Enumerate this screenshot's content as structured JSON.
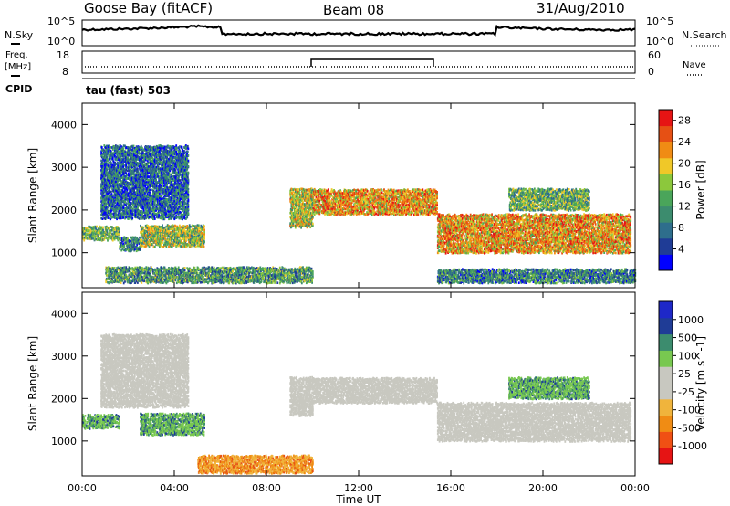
{
  "header": {
    "station": "Goose Bay (fitACF)",
    "beam": "Beam 08",
    "date": "31/Aug/2010"
  },
  "top_panels": {
    "nsky_label": "N.Sky",
    "nsearch_label": "N.Search",
    "noise_ticks": [
      "10^5",
      "10^0"
    ],
    "freq_label_1": "Freq.",
    "freq_label_2": "[MHz]",
    "freq_ticks": [
      "18",
      "8"
    ],
    "nave_label": "Nave",
    "nave_ticks": [
      "60",
      "0"
    ],
    "cpid_label": "CPID",
    "cpid_value": "tau (fast) 503"
  },
  "colors": {
    "power_scale": [
      "#0000ff",
      "#1f3c96",
      "#2e6e8c",
      "#3c8c6e",
      "#4aa55a",
      "#8cc83c",
      "#f0c828",
      "#f08c14",
      "#e65014",
      "#e61414"
    ],
    "velocity_scale": [
      "#e61414",
      "#f05014",
      "#f08c14",
      "#f0b43c",
      "#c8c8c0",
      "#c8c8c0",
      "#78c850",
      "#3c8c6e",
      "#1f3c96",
      "#1e28c8"
    ],
    "ground_scatter": "#c8c8c0"
  },
  "chart_data": [
    {
      "type": "heatmap",
      "ylabel": "Slant Range [km]",
      "xlabel": "",
      "colorbar_label": "Power [dB]",
      "colorbar_ticks": [
        "28",
        "24",
        "20",
        "16",
        "12",
        "8",
        "4"
      ],
      "colorbar_range": [
        0,
        30
      ],
      "ylim": [
        180,
        4500
      ],
      "y_ticks": [
        "1000",
        "2000",
        "3000",
        "4000"
      ],
      "x_range_hours": [
        0,
        24
      ],
      "regions": [
        {
          "t0": 0.0,
          "t1": 1.6,
          "r0": 1300,
          "r1": 1600,
          "level": 14
        },
        {
          "t0": 1.6,
          "t1": 2.5,
          "r0": 1050,
          "r1": 1350,
          "level": 10
        },
        {
          "t0": 2.5,
          "t1": 5.3,
          "r0": 1150,
          "r1": 1650,
          "level": 16
        },
        {
          "t0": 0.8,
          "t1": 4.6,
          "r0": 1800,
          "r1": 3500,
          "level": 8
        },
        {
          "t0": 1.0,
          "t1": 10.0,
          "r0": 300,
          "r1": 650,
          "level": 12
        },
        {
          "t0": 9.0,
          "t1": 10.0,
          "r0": 1600,
          "r1": 2500,
          "level": 18
        },
        {
          "t0": 10.0,
          "t1": 15.4,
          "r0": 1900,
          "r1": 2500,
          "level": 22
        },
        {
          "t0": 15.4,
          "t1": 23.8,
          "r0": 1000,
          "r1": 1900,
          "level": 22
        },
        {
          "t0": 18.5,
          "t1": 22.0,
          "r0": 2000,
          "r1": 2500,
          "level": 14
        },
        {
          "t0": 15.4,
          "t1": 24.0,
          "r0": 300,
          "r1": 600,
          "level": 10
        }
      ]
    },
    {
      "type": "heatmap",
      "ylabel": "Slant Range [km]",
      "xlabel": "Time UT",
      "colorbar_label": "Velocity [m s^-1]",
      "colorbar_ticks": [
        "1000",
        "500",
        "100",
        "25",
        "-25",
        "-100",
        "-500",
        "-1000"
      ],
      "ylim": [
        180,
        4500
      ],
      "y_ticks": [
        "1000",
        "2000",
        "3000",
        "4000"
      ],
      "x_ticks": [
        "00:00",
        "04:00",
        "08:00",
        "12:00",
        "16:00",
        "20:00",
        "00:00"
      ],
      "regions": [
        {
          "t0": 0.0,
          "t1": 1.6,
          "r0": 1300,
          "r1": 1600,
          "velocity": 120
        },
        {
          "t0": 2.5,
          "t1": 5.3,
          "r0": 1150,
          "r1": 1650,
          "velocity": 150
        },
        {
          "t0": 0.8,
          "t1": 4.6,
          "r0": 1800,
          "r1": 3500,
          "velocity": 0,
          "ground": true
        },
        {
          "t0": 5.0,
          "t1": 10.0,
          "r0": 250,
          "r1": 650,
          "velocity": -200
        },
        {
          "t0": 9.0,
          "t1": 10.0,
          "r0": 1600,
          "r1": 2500,
          "velocity": 0,
          "ground": true
        },
        {
          "t0": 10.0,
          "t1": 15.4,
          "r0": 1900,
          "r1": 2500,
          "velocity": 0,
          "ground": true
        },
        {
          "t0": 15.4,
          "t1": 23.8,
          "r0": 1000,
          "r1": 1900,
          "velocity": 0,
          "ground": true
        },
        {
          "t0": 18.5,
          "t1": 22.0,
          "r0": 2000,
          "r1": 2500,
          "velocity": 150
        }
      ]
    }
  ]
}
